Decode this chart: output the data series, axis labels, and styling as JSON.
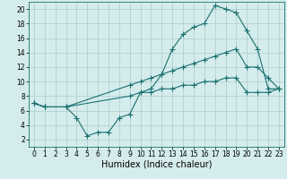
{
  "background_color": "#d5ecec",
  "grid_color": "#aacccc",
  "line_color": "#1a7070",
  "line_width": 0.8,
  "marker": "+",
  "marker_size": 4,
  "marker_edge_width": 0.8,
  "xlabel": "Humidex (Indice chaleur)",
  "xlim": [
    -0.5,
    23.5
  ],
  "ylim": [
    1,
    21
  ],
  "xticks": [
    0,
    1,
    2,
    3,
    4,
    5,
    6,
    7,
    8,
    9,
    10,
    11,
    12,
    13,
    14,
    15,
    16,
    17,
    18,
    19,
    20,
    21,
    22,
    23
  ],
  "yticks": [
    2,
    4,
    6,
    8,
    10,
    12,
    14,
    16,
    18,
    20
  ],
  "tick_fontsize": 5.5,
  "xlabel_fontsize": 7,
  "line1_x": [
    0,
    1,
    3,
    4,
    5,
    6,
    7,
    8,
    9,
    10,
    11,
    12,
    13,
    14,
    15,
    16,
    17,
    18,
    19,
    20,
    21,
    22,
    23
  ],
  "line1_y": [
    7,
    6.5,
    6.5,
    5,
    2.5,
    3,
    3,
    5,
    5.5,
    8.5,
    9,
    11,
    14.5,
    16.5,
    17.5,
    18,
    20.5,
    20,
    19.5,
    17,
    14.5,
    9,
    9
  ],
  "line2_x": [
    0,
    1,
    3,
    9,
    10,
    11,
    12,
    13,
    14,
    15,
    16,
    17,
    18,
    19,
    20,
    21,
    22,
    23
  ],
  "line2_y": [
    7,
    6.5,
    6.5,
    9.5,
    10,
    10.5,
    11,
    11.5,
    12,
    12.5,
    13,
    13.5,
    14,
    14.5,
    12,
    12,
    10.5,
    9
  ],
  "line3_x": [
    0,
    1,
    3,
    9,
    10,
    11,
    12,
    13,
    14,
    15,
    16,
    17,
    18,
    19,
    20,
    21,
    22,
    23
  ],
  "line3_y": [
    7,
    6.5,
    6.5,
    8,
    8.5,
    8.5,
    9,
    9,
    9.5,
    9.5,
    10,
    10,
    10.5,
    10.5,
    8.5,
    8.5,
    8.5,
    9
  ]
}
